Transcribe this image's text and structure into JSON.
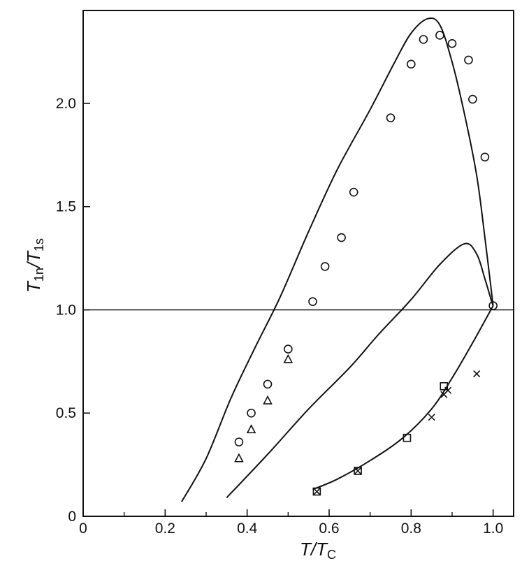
{
  "chart_data": {
    "type": "scatter",
    "title": "",
    "xlabel": {
      "main": "T/T",
      "sub": "C"
    },
    "ylabel": {
      "pre": "T",
      "pre_sub": "1n",
      "sep": "/T",
      "post_sub": "1s"
    },
    "xlim": [
      0,
      1.05
    ],
    "ylim": [
      0,
      2.45
    ],
    "x_ticks": [
      {
        "value": 0,
        "label": "0"
      },
      {
        "value": 0.2,
        "label": "0.2"
      },
      {
        "value": 0.4,
        "label": "0.4"
      },
      {
        "value": 0.6,
        "label": "0.6"
      },
      {
        "value": 0.8,
        "label": "0.8"
      },
      {
        "value": 1.0,
        "label": "1.0"
      }
    ],
    "x_minor_ticks": [
      0.1,
      0.3,
      0.5,
      0.7,
      0.9
    ],
    "y_ticks": [
      {
        "value": 0,
        "label": "0"
      },
      {
        "value": 0.5,
        "label": "0.5"
      },
      {
        "value": 1.0,
        "label": "1.0"
      },
      {
        "value": 1.5,
        "label": "1.5"
      },
      {
        "value": 2.0,
        "label": "2.0"
      }
    ],
    "grid": false,
    "reference_line_y": 1.0,
    "curves": [
      {
        "points": [
          [
            0.24,
            0.07
          ],
          [
            0.3,
            0.28
          ],
          [
            0.36,
            0.57
          ],
          [
            0.42,
            0.82
          ],
          [
            0.48,
            1.06
          ],
          [
            0.55,
            1.38
          ],
          [
            0.62,
            1.68
          ],
          [
            0.7,
            1.97
          ],
          [
            0.76,
            2.2
          ],
          [
            0.8,
            2.34
          ],
          [
            0.84,
            2.41
          ],
          [
            0.87,
            2.38
          ],
          [
            0.9,
            2.2
          ],
          [
            0.93,
            1.95
          ],
          [
            0.96,
            1.65
          ],
          [
            0.98,
            1.35
          ],
          [
            1.0,
            1.02
          ]
        ]
      },
      {
        "points": [
          [
            0.35,
            0.09
          ],
          [
            0.45,
            0.3
          ],
          [
            0.55,
            0.52
          ],
          [
            0.65,
            0.72
          ],
          [
            0.72,
            0.88
          ],
          [
            0.8,
            1.05
          ],
          [
            0.87,
            1.22
          ],
          [
            0.93,
            1.32
          ],
          [
            0.96,
            1.27
          ],
          [
            0.98,
            1.15
          ],
          [
            0.995,
            1.05
          ],
          [
            1.0,
            1.02
          ]
        ]
      },
      {
        "points": [
          [
            0.56,
            0.13
          ],
          [
            0.62,
            0.18
          ],
          [
            0.7,
            0.27
          ],
          [
            0.78,
            0.38
          ],
          [
            0.85,
            0.52
          ],
          [
            0.9,
            0.67
          ],
          [
            0.95,
            0.84
          ],
          [
            1.0,
            1.02
          ]
        ]
      }
    ],
    "series": [
      {
        "marker": "circle",
        "points": [
          [
            0.38,
            0.36
          ],
          [
            0.41,
            0.5
          ],
          [
            0.45,
            0.64
          ],
          [
            0.5,
            0.81
          ],
          [
            0.56,
            1.04
          ],
          [
            0.59,
            1.21
          ],
          [
            0.63,
            1.35
          ],
          [
            0.66,
            1.57
          ],
          [
            0.75,
            1.93
          ],
          [
            0.8,
            2.19
          ],
          [
            0.83,
            2.31
          ],
          [
            0.87,
            2.33
          ],
          [
            0.9,
            2.29
          ],
          [
            0.94,
            2.21
          ],
          [
            0.95,
            2.02
          ],
          [
            0.98,
            1.74
          ],
          [
            1.0,
            1.02
          ]
        ]
      },
      {
        "marker": "triangle",
        "points": [
          [
            0.38,
            0.28
          ],
          [
            0.41,
            0.42
          ],
          [
            0.45,
            0.56
          ],
          [
            0.5,
            0.76
          ]
        ]
      },
      {
        "marker": "square",
        "points": [
          [
            0.79,
            0.38
          ],
          [
            0.88,
            0.63
          ]
        ]
      },
      {
        "marker": "cross",
        "points": [
          [
            0.85,
            0.48
          ],
          [
            0.88,
            0.59
          ],
          [
            0.89,
            0.61
          ],
          [
            0.96,
            0.69
          ]
        ]
      },
      {
        "marker": "boxed-cross",
        "points": [
          [
            0.57,
            0.12
          ],
          [
            0.67,
            0.22
          ]
        ]
      }
    ]
  }
}
